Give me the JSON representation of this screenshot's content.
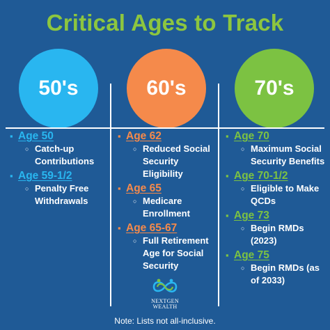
{
  "colors": {
    "background": "#1f5a96",
    "title": "#8dc63f",
    "blue": "#29b6f0",
    "orange": "#f58a4b",
    "green": "#7cc242"
  },
  "title": "Critical Ages to Track",
  "columns": [
    {
      "heading": "50's",
      "color": "#29b6f0",
      "items": [
        {
          "age": "Age 50",
          "details": [
            "Catch-up Contributions"
          ]
        },
        {
          "age": "Age 59-1/2",
          "details": [
            "Penalty Free Withdrawals"
          ]
        }
      ]
    },
    {
      "heading": "60's",
      "color": "#f58a4b",
      "items": [
        {
          "age": "Age 62",
          "details": [
            "Reduced Social Security Eligibility"
          ]
        },
        {
          "age": "Age 65",
          "details": [
            "Medicare Enrollment"
          ]
        },
        {
          "age": "Age 65-67",
          "details": [
            "Full Retirement Age for Social Security"
          ]
        }
      ]
    },
    {
      "heading": "70's",
      "color": "#7cc242",
      "items": [
        {
          "age": "Age 70",
          "details": [
            "Maximum Social Security Benefits"
          ]
        },
        {
          "age": "Age 70-1/2",
          "details": [
            "Eligible to Make QCDs"
          ]
        },
        {
          "age": "Age 73",
          "details": [
            "Begin RMDs (2023)"
          ]
        },
        {
          "age": "Age 75",
          "details": [
            "Begin RMDs (as of 2033)"
          ]
        }
      ]
    }
  ],
  "logo": {
    "line1": "NEXTGEN",
    "line2": "WEALTH"
  },
  "footnote": "Note: Lists not all-inclusive."
}
